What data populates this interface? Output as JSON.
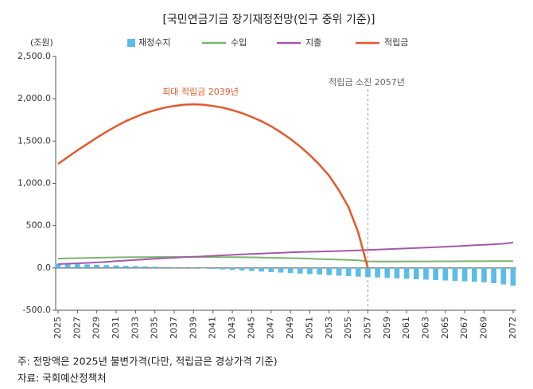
{
  "chart_data": {
    "type": "combo",
    "title": "[국민연금기금 장기재정전망(인구 중위 기준)]",
    "y_unit": "(조원)",
    "categories": [
      "2025",
      null,
      "2027",
      null,
      "2029",
      null,
      "2031",
      null,
      "2033",
      null,
      "2035",
      null,
      "2037",
      null,
      "2039",
      null,
      "2041",
      null,
      "2043",
      null,
      "2045",
      null,
      "2047",
      null,
      "2049",
      null,
      "2051",
      null,
      "2053",
      null,
      "2055",
      null,
      "2057",
      null,
      "2059",
      null,
      "2061",
      null,
      "2063",
      null,
      "2065",
      null,
      "2067",
      null,
      "2069",
      null,
      null,
      "2072"
    ],
    "series": [
      {
        "name": "재정수지",
        "type": "bar",
        "color": "#5bbde6",
        "values": [
          50,
          48,
          45,
          42,
          38,
          34,
          30,
          26,
          22,
          18,
          14,
          10,
          6,
          2,
          -2,
          -6,
          -12,
          -18,
          -24,
          -30,
          -36,
          -42,
          -48,
          -54,
          -60,
          -66,
          -72,
          -78,
          -84,
          -90,
          -96,
          -102,
          -108,
          -113,
          -118,
          -123,
          -128,
          -133,
          -138,
          -143,
          -148,
          -153,
          -158,
          -164,
          -170,
          -180,
          -195,
          -210
        ]
      },
      {
        "name": "수입",
        "type": "line",
        "color": "#7db46c",
        "values": [
          110,
          113,
          116,
          119,
          121,
          123,
          125,
          126,
          127,
          128,
          129,
          130,
          130,
          130,
          130,
          130,
          129,
          128,
          127,
          126,
          125,
          123,
          121,
          119,
          116,
          113,
          110,
          106,
          102,
          98,
          94,
          90,
          78,
          76,
          76,
          76,
          77,
          77,
          77,
          78,
          78,
          78,
          79,
          79,
          79,
          80,
          80,
          80
        ]
      },
      {
        "name": "지출",
        "type": "line",
        "color": "#a25aa8",
        "values": [
          45,
          50,
          55,
          60,
          65,
          72,
          80,
          88,
          95,
          102,
          108,
          115,
          121,
          127,
          132,
          137,
          143,
          149,
          155,
          160,
          165,
          170,
          175,
          180,
          184,
          188,
          191,
          194,
          197,
          200,
          204,
          208,
          214,
          218,
          222,
          226,
          231,
          236,
          241,
          246,
          251,
          256,
          262,
          268,
          274,
          280,
          286,
          300
        ]
      },
      {
        "name": "적립금",
        "type": "line",
        "color": "#e4582a",
        "values": [
          1230,
          1310,
          1390,
          1465,
          1540,
          1610,
          1675,
          1735,
          1785,
          1830,
          1865,
          1895,
          1915,
          1930,
          1935,
          1930,
          1915,
          1895,
          1865,
          1830,
          1785,
          1735,
          1675,
          1605,
          1525,
          1435,
          1335,
          1220,
          1090,
          920,
          720,
          420,
          0,
          null,
          null,
          null,
          null,
          null,
          null,
          null,
          null,
          null,
          null,
          null,
          null,
          null,
          null,
          null
        ]
      }
    ],
    "ylim": [
      -500,
      2500
    ],
    "yticks": [
      {
        "value": -500,
        "label": "-500.0"
      },
      {
        "value": 0,
        "label": "0.0"
      },
      {
        "value": 500,
        "label": "500.0"
      },
      {
        "value": 1000,
        "label": "1,000.0"
      },
      {
        "value": 1500,
        "label": "1,500.0"
      },
      {
        "value": 2000,
        "label": "2,000.0"
      },
      {
        "value": 2500,
        "label": "2,500.0"
      }
    ],
    "annotations": [
      "최대 적립금 2039년",
      "적립금 소진 2057년"
    ],
    "notes": [
      "주: 전망액은 2025년 불변가격(다만, 적립금은 경상가격 기준)",
      "자료: 국회예산정책처"
    ]
  }
}
